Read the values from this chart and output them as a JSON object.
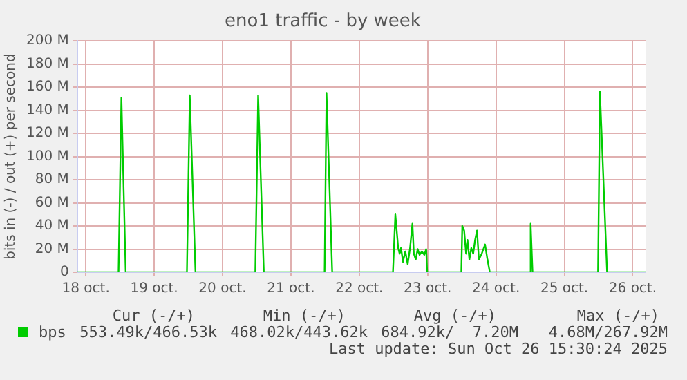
{
  "chart_data": {
    "type": "line",
    "title": "eno1 traffic - by week",
    "ylabel": "bits in (-) / out (+) per second",
    "xlim": [
      "2025-10-18T09:00",
      "2025-10-26T16:30"
    ],
    "xticks": [
      {
        "value": "2025-10-18T12:00",
        "label": "18 oct."
      },
      {
        "value": "2025-10-19T12:00",
        "label": "19 oct."
      },
      {
        "value": "2025-10-20T12:00",
        "label": "20 oct."
      },
      {
        "value": "2025-10-21T12:00",
        "label": "21 oct."
      },
      {
        "value": "2025-10-22T12:00",
        "label": "22 oct."
      },
      {
        "value": "2025-10-23T12:00",
        "label": "23 oct."
      },
      {
        "value": "2025-10-24T12:00",
        "label": "24 oct."
      },
      {
        "value": "2025-10-25T12:00",
        "label": "25 oct."
      },
      {
        "value": "2025-10-26T12:00",
        "label": "26 oct."
      }
    ],
    "ylim": [
      0,
      200
    ],
    "yticks": [
      {
        "value": 0,
        "label": "0"
      },
      {
        "value": 20,
        "label": "20 M"
      },
      {
        "value": 40,
        "label": "40 M"
      },
      {
        "value": 60,
        "label": "60 M"
      },
      {
        "value": 80,
        "label": "80 M"
      },
      {
        "value": 100,
        "label": "100 M"
      },
      {
        "value": 120,
        "label": "120 M"
      },
      {
        "value": 140,
        "label": "140 M"
      },
      {
        "value": 160,
        "label": "160 M"
      },
      {
        "value": 180,
        "label": "180 M"
      },
      {
        "value": 200,
        "label": "200 M"
      }
    ],
    "grid": true,
    "legend": "bottom",
    "marker": "none",
    "line_style": "solid",
    "x": [
      "2025-10-18T09:00",
      "2025-10-18T23:30",
      "2025-10-19T00:30",
      "2025-10-19T02:00",
      "2025-10-19T23:30",
      "2025-10-20T00:30",
      "2025-10-20T02:30",
      "2025-10-20T23:30",
      "2025-10-21T00:30",
      "2025-10-21T02:30",
      "2025-10-21T23:50",
      "2025-10-22T00:30",
      "2025-10-22T02:30",
      "2025-10-22T23:50",
      "2025-10-23T00:40",
      "2025-10-23T01:40",
      "2025-10-23T02:10",
      "2025-10-23T02:40",
      "2025-10-23T03:20",
      "2025-10-23T04:10",
      "2025-10-23T05:00",
      "2025-10-23T05:50",
      "2025-10-23T06:40",
      "2025-10-23T07:10",
      "2025-10-23T07:50",
      "2025-10-23T08:30",
      "2025-10-23T09:10",
      "2025-10-23T10:00",
      "2025-10-23T10:50",
      "2025-10-23T11:30",
      "2025-10-23T11:50",
      "2025-10-23T23:50",
      "2025-10-24T00:10",
      "2025-10-24T00:50",
      "2025-10-24T01:30",
      "2025-10-24T02:00",
      "2025-10-24T02:40",
      "2025-10-24T03:20",
      "2025-10-24T04:00",
      "2025-10-24T04:40",
      "2025-10-24T05:20",
      "2025-10-24T06:00",
      "2025-10-24T07:00",
      "2025-10-24T08:10",
      "2025-10-24T09:00",
      "2025-10-24T09:50",
      "2025-10-24T23:50",
      "2025-10-25T00:10",
      "2025-10-25T00:50",
      "2025-10-25T23:50",
      "2025-10-26T00:30",
      "2025-10-26T03:00",
      "2025-10-26T16:30"
    ],
    "series": [
      {
        "name": "bps",
        "color": "#00cc00",
        "values": [
          0,
          0,
          151,
          0,
          0,
          153,
          0,
          0,
          153,
          0,
          0,
          155,
          0,
          0,
          50,
          21,
          16,
          21,
          9,
          18,
          7,
          21,
          42,
          16,
          11,
          20,
          15,
          18,
          15,
          20,
          0,
          0,
          40,
          36,
          16,
          28,
          11,
          21,
          16,
          28,
          36,
          11,
          16,
          24,
          11,
          0,
          0,
          42,
          0,
          0,
          156,
          0,
          0
        ]
      }
    ],
    "annotations": [
      "Cur (-/+)",
      "Min (-/+)",
      "Avg (-/+)",
      "Max (-/+)",
      "553.49k/466.53k",
      "468.02k/443.62k",
      "684.92k/  7.20M",
      "4.68M/267.92M",
      "Last update: Sun Oct 26 15:30:24 2025"
    ]
  }
}
